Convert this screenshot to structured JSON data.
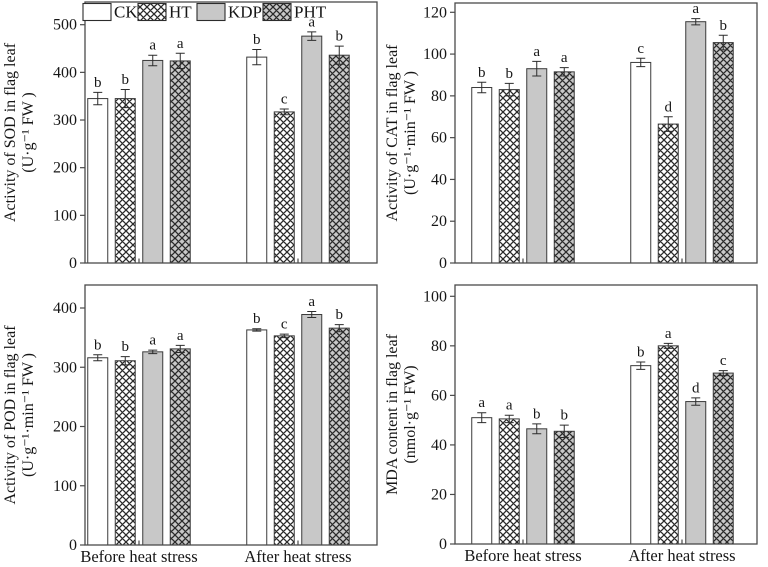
{
  "figure": {
    "description_colors": {
      "bar_white": "#ffffff",
      "bar_gray": "#c8c8c8",
      "hatch_stroke": "#2a2a2a",
      "frame": "#4a4a4a",
      "text": "#161616"
    },
    "legend": {
      "items": [
        {
          "label": "CK",
          "fill": "white",
          "hatch": false
        },
        {
          "label": "HT",
          "fill": "white",
          "hatch": true
        },
        {
          "label": "KDP",
          "fill": "gray",
          "hatch": false
        },
        {
          "label": "PHT",
          "fill": "gray",
          "hatch": true
        }
      ],
      "location": "top-left-panel"
    }
  },
  "chart_data": [
    {
      "id": "sod",
      "type": "bar",
      "position": "top-left",
      "ylabel": "Activity of SOD in flag leaf",
      "ylabel_units": "(U·g⁻¹ FW )",
      "categories": [
        "Before heat stress",
        "After heat stress"
      ],
      "x_labels_visible": false,
      "ylim": [
        0,
        500
      ],
      "ytick_step": 100,
      "grid": false,
      "series": [
        {
          "name": "CK",
          "values": [
            345,
            432
          ],
          "errors": [
            13,
            16
          ],
          "letters": [
            "b",
            "b"
          ]
        },
        {
          "name": "HT",
          "values": [
            345,
            317
          ],
          "errors": [
            19,
            6
          ],
          "letters": [
            "b",
            "c"
          ]
        },
        {
          "name": "KDP",
          "values": [
            425,
            476
          ],
          "errors": [
            11,
            9
          ],
          "letters": [
            "a",
            "a"
          ]
        },
        {
          "name": "PHT",
          "values": [
            424,
            436
          ],
          "errors": [
            16,
            19
          ],
          "letters": [
            "a",
            "b"
          ]
        }
      ]
    },
    {
      "id": "cat",
      "type": "bar",
      "position": "top-right",
      "ylabel": "Activity of CAT in flag leaf",
      "ylabel_units": "(U·g⁻¹·min⁻¹ FW )",
      "categories": [
        "Before heat stress",
        "After heat stress"
      ],
      "x_labels_visible": false,
      "ylim": [
        0,
        120
      ],
      "ytick_step": 20,
      "grid": false,
      "series": [
        {
          "name": "CK",
          "values": [
            84,
            96
          ],
          "errors": [
            2.5,
            2
          ],
          "letters": [
            "b",
            "c"
          ]
        },
        {
          "name": "HT",
          "values": [
            83,
            66.5
          ],
          "errors": [
            3,
            3.5
          ],
          "letters": [
            "b",
            "d"
          ]
        },
        {
          "name": "KDP",
          "values": [
            93,
            115.5
          ],
          "errors": [
            3.5,
            1.5
          ],
          "letters": [
            "a",
            "a"
          ]
        },
        {
          "name": "PHT",
          "values": [
            91.5,
            105.5
          ],
          "errors": [
            2,
            3.5
          ],
          "letters": [
            "a",
            "b"
          ]
        }
      ]
    },
    {
      "id": "pod",
      "type": "bar",
      "position": "bottom-left",
      "ylabel": "Activity of POD in flag leaf",
      "ylabel_units": "(U·g⁻¹·min⁻¹ FW )",
      "categories": [
        "Before heat stress",
        "After heat stress"
      ],
      "x_labels_visible": true,
      "ylim": [
        0,
        400
      ],
      "ytick_step": 100,
      "grid": false,
      "series": [
        {
          "name": "CK",
          "values": [
            316,
            363
          ],
          "errors": [
            5,
            2
          ],
          "letters": [
            "b",
            "b"
          ]
        },
        {
          "name": "HT",
          "values": [
            311,
            353
          ],
          "errors": [
            7,
            3
          ],
          "letters": [
            "b",
            "c"
          ]
        },
        {
          "name": "KDP",
          "values": [
            326,
            389
          ],
          "errors": [
            3,
            5
          ],
          "letters": [
            "a",
            "a"
          ]
        },
        {
          "name": "PHT",
          "values": [
            331,
            366
          ],
          "errors": [
            6,
            6
          ],
          "letters": [
            "a",
            "b"
          ]
        }
      ]
    },
    {
      "id": "mda",
      "type": "bar",
      "position": "bottom-right",
      "ylabel": "MDA content in flag leaf",
      "ylabel_units": "(nmol·g⁻¹ FW)",
      "categories": [
        "Before heat stress",
        "After heat stress"
      ],
      "x_labels_visible": true,
      "ylim": [
        0,
        100
      ],
      "ytick_step": 20,
      "grid": false,
      "series": [
        {
          "name": "CK",
          "values": [
            51,
            72
          ],
          "errors": [
            2,
            1.5
          ],
          "letters": [
            "a",
            "b"
          ]
        },
        {
          "name": "HT",
          "values": [
            50.5,
            80
          ],
          "errors": [
            1.5,
            1
          ],
          "letters": [
            "a",
            "a"
          ]
        },
        {
          "name": "KDP",
          "values": [
            46.5,
            57.5
          ],
          "errors": [
            2,
            1.5
          ],
          "letters": [
            "b",
            "d"
          ]
        },
        {
          "name": "PHT",
          "values": [
            45.5,
            69
          ],
          "errors": [
            2.5,
            1
          ],
          "letters": [
            "b",
            "c"
          ]
        }
      ]
    }
  ]
}
